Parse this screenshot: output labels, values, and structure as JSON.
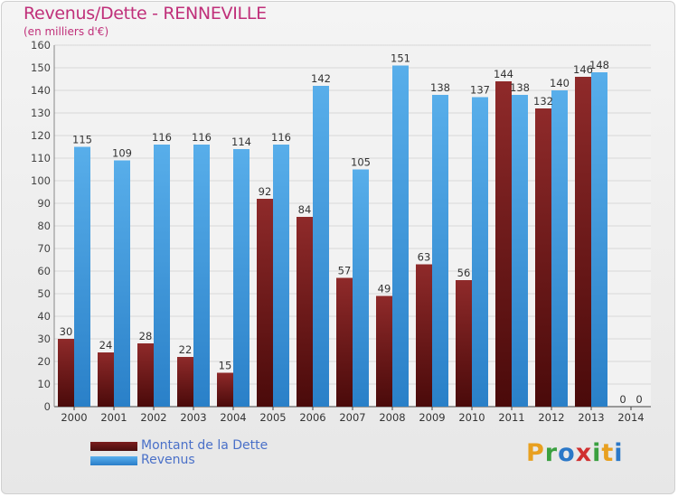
{
  "chart_data": {
    "type": "bar",
    "title": "Revenus/Dette - RENNEVILLE",
    "subtitle": "(en milliers d'€)",
    "categories": [
      "2000",
      "2001",
      "2002",
      "2003",
      "2004",
      "2005",
      "2006",
      "2007",
      "2008",
      "2009",
      "2010",
      "2011",
      "2012",
      "2013",
      "2014"
    ],
    "series": [
      {
        "name": "Montant de la Dette",
        "color": "#8a2727",
        "values": [
          30,
          24,
          28,
          22,
          15,
          92,
          84,
          57,
          49,
          63,
          56,
          144,
          132,
          146,
          0
        ]
      },
      {
        "name": "Revenus",
        "color": "#4aa0e0",
        "values": [
          115,
          109,
          116,
          116,
          114,
          116,
          142,
          105,
          151,
          138,
          137,
          138,
          140,
          148,
          0
        ]
      }
    ],
    "ylim": [
      0,
      160
    ],
    "yticks": [
      0,
      10,
      20,
      30,
      40,
      50,
      60,
      70,
      80,
      90,
      100,
      110,
      120,
      130,
      140,
      150,
      160
    ],
    "grid": true,
    "legend": "bottom-left"
  },
  "logo": {
    "letters": [
      "P",
      "r",
      "o",
      "x",
      "i",
      "t",
      "i"
    ],
    "colors": [
      "#e8a020",
      "#3aa040",
      "#2a78c8",
      "#d03030",
      "#3aa040",
      "#e8a020",
      "#2a78c8"
    ]
  }
}
